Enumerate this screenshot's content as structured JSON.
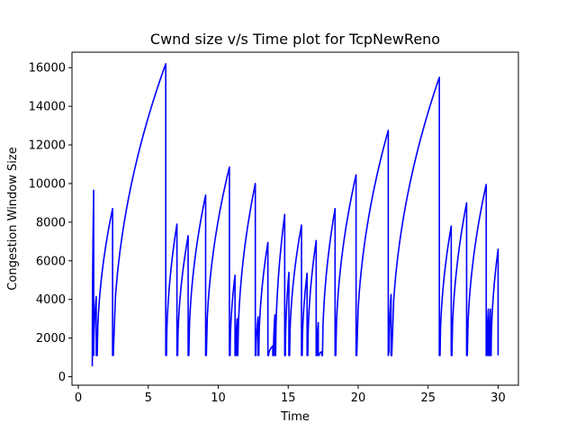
{
  "chart_data": {
    "type": "line",
    "title": "Cwnd size v/s Time plot for TcpNewReno",
    "xlabel": "Time",
    "ylabel": "Congestion Window Size",
    "xlim": [
      -0.45,
      31.45
    ],
    "ylim": [
      -440,
      16800
    ],
    "xticks": [
      0,
      5,
      10,
      15,
      20,
      25,
      30
    ],
    "yticks": [
      0,
      2000,
      4000,
      6000,
      8000,
      10000,
      12000,
      14000,
      16000
    ],
    "grid": false,
    "legend": "none",
    "series": [
      {
        "color": "#0000ff",
        "cycles": [
          {
            "start": 1.0,
            "end": 1.1,
            "low": 536,
            "peak": 9650
          },
          {
            "start": 1.1,
            "end": 1.28,
            "low": 1100,
            "peak": 4150
          },
          {
            "start": 1.35,
            "end": 2.45,
            "low": 1100,
            "peak": 8700
          },
          {
            "start": 2.5,
            "end": 6.25,
            "low": 1100,
            "peak": 16200
          },
          {
            "start": 6.3,
            "end": 7.05,
            "low": 1100,
            "peak": 7900
          },
          {
            "start": 7.1,
            "end": 7.85,
            "low": 1100,
            "peak": 7300
          },
          {
            "start": 7.9,
            "end": 9.1,
            "low": 1100,
            "peak": 9400
          },
          {
            "start": 9.15,
            "end": 10.8,
            "low": 1100,
            "peak": 10850
          },
          {
            "start": 10.85,
            "end": 11.2,
            "low": 1100,
            "peak": 5250
          },
          {
            "start": 11.25,
            "end": 11.35,
            "low": 1100,
            "peak": 3000
          },
          {
            "start": 11.4,
            "end": 12.65,
            "low": 1100,
            "peak": 10000
          },
          {
            "start": 12.7,
            "end": 12.85,
            "low": 1100,
            "peak": 3100
          },
          {
            "start": 12.9,
            "end": 13.55,
            "low": 1100,
            "peak": 6950
          },
          {
            "start": 13.6,
            "end": 13.9,
            "low": 1100,
            "peak": 1600
          },
          {
            "start": 13.95,
            "end": 14.05,
            "low": 1100,
            "peak": 3200
          },
          {
            "start": 14.1,
            "end": 14.75,
            "low": 1100,
            "peak": 8400
          },
          {
            "start": 14.8,
            "end": 15.05,
            "low": 1100,
            "peak": 5400
          },
          {
            "start": 15.1,
            "end": 15.95,
            "low": 1100,
            "peak": 7850
          },
          {
            "start": 16.0,
            "end": 16.35,
            "low": 1100,
            "peak": 5350
          },
          {
            "start": 16.4,
            "end": 17.0,
            "low": 1100,
            "peak": 7050
          },
          {
            "start": 17.05,
            "end": 17.15,
            "low": 1100,
            "peak": 2800
          },
          {
            "start": 17.2,
            "end": 17.4,
            "low": 1100,
            "peak": 1300
          },
          {
            "start": 17.45,
            "end": 18.35,
            "low": 1100,
            "peak": 8700
          },
          {
            "start": 18.4,
            "end": 19.85,
            "low": 1100,
            "peak": 10450
          },
          {
            "start": 19.9,
            "end": 22.15,
            "low": 1100,
            "peak": 12750
          },
          {
            "start": 22.2,
            "end": 22.35,
            "low": 1300,
            "peak": 4250
          },
          {
            "start": 22.4,
            "end": 25.8,
            "low": 1100,
            "peak": 15500
          },
          {
            "start": 25.85,
            "end": 26.65,
            "low": 1100,
            "peak": 7800
          },
          {
            "start": 26.7,
            "end": 27.75,
            "low": 1100,
            "peak": 9000
          },
          {
            "start": 27.8,
            "end": 29.15,
            "low": 1100,
            "peak": 9950
          },
          {
            "start": 29.2,
            "end": 29.3,
            "low": 1100,
            "peak": 3500
          },
          {
            "start": 29.35,
            "end": 29.45,
            "low": 1100,
            "peak": 3500
          },
          {
            "start": 29.5,
            "end": 30.0,
            "low": 1100,
            "peak": 6600
          }
        ]
      }
    ]
  }
}
